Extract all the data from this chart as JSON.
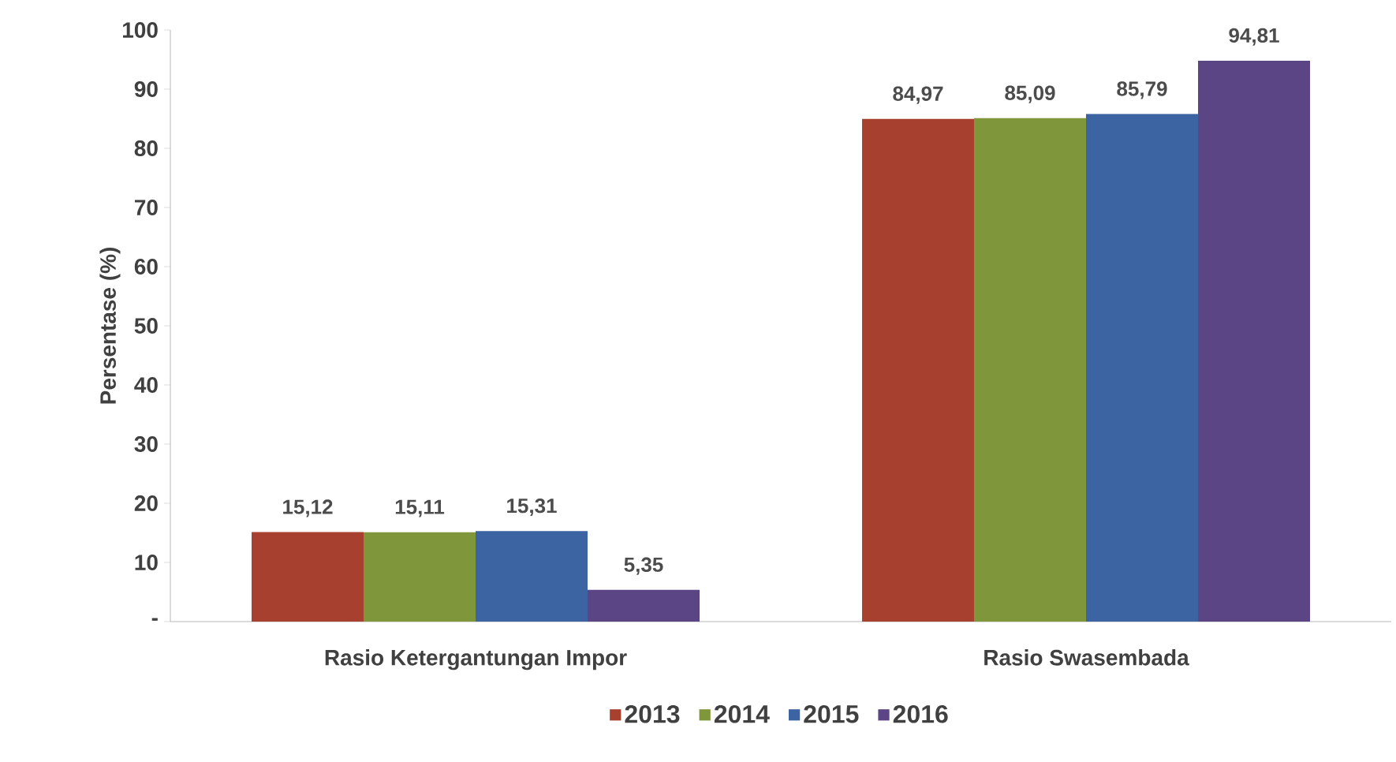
{
  "chart_data": {
    "type": "bar",
    "ylabel": "Persentase (%)",
    "categories": [
      "Rasio Ketergantungan Impor",
      "Rasio Swasembada"
    ],
    "series": [
      {
        "name": "2013",
        "color": "#a8402f",
        "values": [
          15.12,
          84.97
        ],
        "value_labels": [
          "15,12",
          "84,97"
        ]
      },
      {
        "name": "2014",
        "color": "#7f963a",
        "values": [
          15.11,
          85.09
        ],
        "value_labels": [
          "15,11",
          "85,09"
        ]
      },
      {
        "name": "2015",
        "color": "#3c64a3",
        "values": [
          15.31,
          85.79
        ],
        "value_labels": [
          "15,31",
          "85,79"
        ]
      },
      {
        "name": "2016",
        "color": "#5c4585",
        "values": [
          5.35,
          94.81
        ],
        "value_labels": [
          "5,35",
          "94,81"
        ]
      }
    ],
    "ylim": [
      0,
      100
    ],
    "yticks": [
      {
        "value": 0,
        "label": "-"
      },
      10,
      20,
      30,
      40,
      50,
      60,
      70,
      80,
      90,
      100
    ],
    "legend": "bottom"
  }
}
